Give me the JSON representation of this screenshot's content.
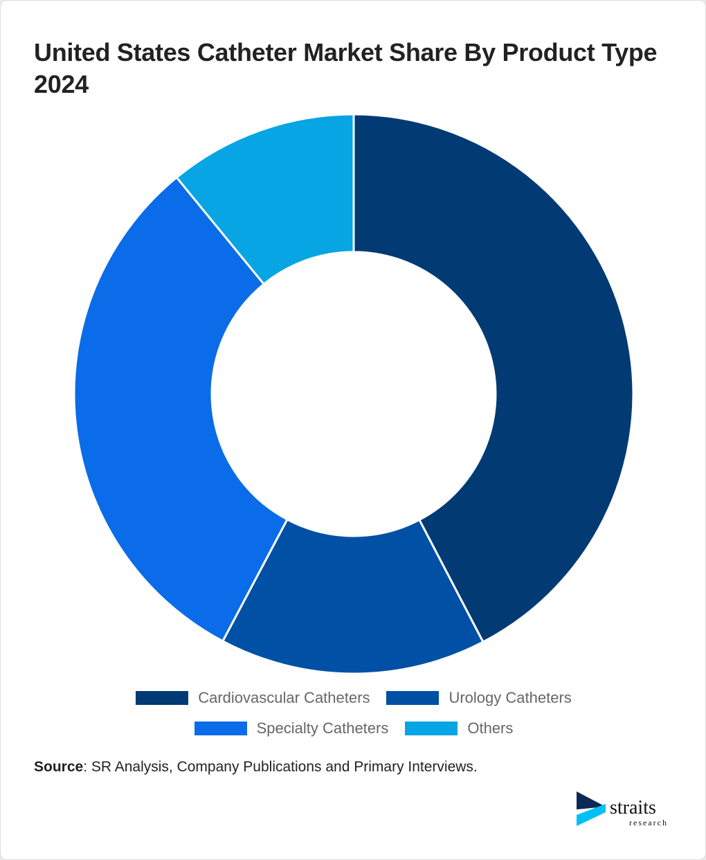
{
  "title": "United States Catheter Market Share By Product Type 2024",
  "chart_data": {
    "type": "pie",
    "donut": true,
    "categories": [
      "Cardiovascular Catheters",
      "Urology Catheters",
      "Specialty Catheters",
      "Others"
    ],
    "values": [
      42.3,
      15.4,
      31.3,
      10.9
    ],
    "colors": [
      "#023a74",
      "#0050a5",
      "#0a6ce8",
      "#07a5e3"
    ],
    "legend_position": "bottom"
  },
  "source": {
    "label": "Source",
    "text": ": SR Analysis, Company Publications and Primary Interviews."
  },
  "logo": {
    "name": "straits",
    "sub": "research"
  }
}
